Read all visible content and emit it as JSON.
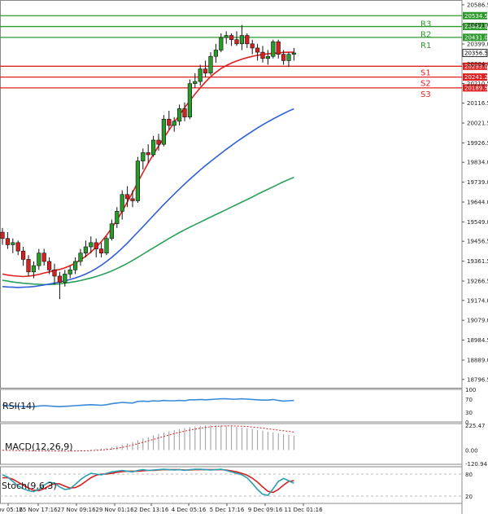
{
  "chart_data": {
    "type": "candlestick",
    "ylim": [
      18780,
      20590
    ],
    "y_ticks": [
      "20586.5",
      "20491.0",
      "20399.0",
      "20304.0",
      "20210.5",
      "20116.5",
      "20021.5",
      "19926.5",
      "19834.0",
      "19739.0",
      "19644.0",
      "19549.0",
      "19456.5",
      "19361.5",
      "19266.5",
      "19174.0",
      "19079.0",
      "18984.5",
      "18889.0",
      "18796.5"
    ],
    "x_ticks": [
      "Nov 05:16",
      "25 Nov 17:16",
      "27 Nov 09:16",
      "29 Nov 01:16",
      "2 Dec 13:16",
      "4 Dec 05:16",
      "5 Dec 17:16",
      "9 Dec 09:16",
      "11 Dec 01:16"
    ],
    "levels": [
      {
        "name": "R3",
        "value": 20534.5,
        "color": "#2e9a2e"
      },
      {
        "name": "R2",
        "value": 20482.8,
        "color": "#2e9a2e"
      },
      {
        "name": "R1",
        "value": 20431.0,
        "color": "#2e9a2e"
      },
      {
        "name": "S1",
        "value": 20293.0,
        "color": "#e02020"
      },
      {
        "name": "S2",
        "value": 20241.2,
        "color": "#e02020"
      },
      {
        "name": "S3",
        "value": 20189.5,
        "color": "#e02020"
      }
    ],
    "current_price": "20356.5",
    "candles": [
      [
        19500,
        19520,
        19440,
        19470
      ],
      [
        19470,
        19500,
        19420,
        19440
      ],
      [
        19440,
        19470,
        19400,
        19450
      ],
      [
        19450,
        19460,
        19390,
        19410
      ],
      [
        19410,
        19430,
        19340,
        19370
      ],
      [
        19370,
        19390,
        19290,
        19310
      ],
      [
        19310,
        19360,
        19280,
        19340
      ],
      [
        19340,
        19420,
        19320,
        19400
      ],
      [
        19400,
        19420,
        19340,
        19360
      ],
      [
        19360,
        19380,
        19300,
        19320
      ],
      [
        19320,
        19350,
        19250,
        19290
      ],
      [
        19290,
        19310,
        19180,
        19260
      ],
      [
        19260,
        19320,
        19240,
        19300
      ],
      [
        19300,
        19340,
        19280,
        19320
      ],
      [
        19320,
        19380,
        19300,
        19360
      ],
      [
        19360,
        19420,
        19340,
        19400
      ],
      [
        19400,
        19460,
        19380,
        19430
      ],
      [
        19430,
        19480,
        19400,
        19450
      ],
      [
        19450,
        19470,
        19380,
        19420
      ],
      [
        19420,
        19450,
        19380,
        19400
      ],
      [
        19400,
        19480,
        19390,
        19470
      ],
      [
        19470,
        19560,
        19460,
        19540
      ],
      [
        19540,
        19620,
        19520,
        19600
      ],
      [
        19600,
        19700,
        19560,
        19680
      ],
      [
        19680,
        19720,
        19620,
        19660
      ],
      [
        19660,
        19700,
        19620,
        19650
      ],
      [
        19650,
        19860,
        19640,
        19840
      ],
      [
        19840,
        19900,
        19800,
        19880
      ],
      [
        19880,
        19920,
        19830,
        19870
      ],
      [
        19870,
        19960,
        19860,
        19940
      ],
      [
        19940,
        19970,
        19890,
        19920
      ],
      [
        19920,
        20060,
        19910,
        20040
      ],
      [
        20040,
        20080,
        19990,
        20010
      ],
      [
        20010,
        20050,
        19980,
        20030
      ],
      [
        20030,
        20110,
        20010,
        20090
      ],
      [
        20090,
        20120,
        20030,
        20050
      ],
      [
        20050,
        20230,
        20040,
        20210
      ],
      [
        20210,
        20260,
        20190,
        20220
      ],
      [
        20220,
        20300,
        20200,
        20280
      ],
      [
        20280,
        20320,
        20240,
        20260
      ],
      [
        20260,
        20360,
        20250,
        20340
      ],
      [
        20340,
        20400,
        20310,
        20370
      ],
      [
        20370,
        20450,
        20360,
        20430
      ],
      [
        20430,
        20460,
        20400,
        20440
      ],
      [
        20440,
        20450,
        20390,
        20420
      ],
      [
        20420,
        20460,
        20390,
        20400
      ],
      [
        20400,
        20490,
        20370,
        20440
      ],
      [
        20440,
        20450,
        20380,
        20400
      ],
      [
        20400,
        20420,
        20350,
        20380
      ],
      [
        20380,
        20400,
        20320,
        20360
      ],
      [
        20360,
        20390,
        20310,
        20330
      ],
      [
        20330,
        20370,
        20300,
        20340
      ],
      [
        20340,
        20420,
        20330,
        20410
      ],
      [
        20410,
        20420,
        20330,
        20350
      ],
      [
        20350,
        20370,
        20300,
        20320
      ],
      [
        20320,
        20360,
        20290,
        20350
      ],
      [
        20350,
        20380,
        20320,
        20356.5
      ]
    ],
    "ma_fast": [
      19300,
      19295,
      19292,
      19290,
      19288,
      19290,
      19293,
      19298,
      19305,
      19310,
      19318,
      19322,
      19330,
      19340,
      19352,
      19368,
      19385,
      19405,
      19428,
      19455,
      19485,
      19520,
      19558,
      19600,
      19645,
      19690,
      19738,
      19785,
      19830,
      19872,
      19912,
      19950,
      19988,
      20025,
      20060,
      20095,
      20128,
      20160,
      20190,
      20218,
      20243,
      20264,
      20282,
      20296,
      20308,
      20318,
      20327,
      20334,
      20340,
      20345,
      20349,
      20352,
      20355,
      20357,
      20359,
      20360,
      20360
    ],
    "ma_mid": [
      19240,
      19238,
      19237,
      19236,
      19237,
      19238,
      19240,
      19244,
      19248,
      19252,
      19257,
      19262,
      19268,
      19274,
      19281,
      19290,
      19300,
      19312,
      19326,
      19342,
      19360,
      19380,
      19401,
      19424,
      19448,
      19474,
      19500,
      19526,
      19553,
      19580,
      19606,
      19632,
      19657,
      19682,
      19706,
      19730,
      19753,
      19775,
      19797,
      19818,
      19838,
      19858,
      19877,
      19896,
      19914,
      19932,
      19949,
      19966,
      19982,
      19998,
      20013,
      20027,
      20041,
      20054,
      20067,
      20079,
      20090
    ],
    "ma_slow": [
      19270,
      19266,
      19262,
      19259,
      19256,
      19254,
      19252,
      19251,
      19250,
      19250,
      19251,
      19253,
      19256,
      19260,
      19264,
      19269,
      19275,
      19281,
      19288,
      19296,
      19305,
      19315,
      19326,
      19338,
      19351,
      19365,
      19380,
      19395,
      19410,
      19425,
      19440,
      19455,
      19470,
      19484,
      19498,
      19511,
      19524,
      19536,
      19548,
      19560,
      19572,
      19584,
      19596,
      19608,
      19620,
      19632,
      19644,
      19656,
      19668,
      19681,
      19693,
      19705,
      19717,
      19729,
      19741,
      19752,
      19762
    ]
  },
  "indicators": {
    "rsi": {
      "label": "RSI(14)",
      "ticks": [
        "100",
        "70",
        "30",
        "0"
      ],
      "values": [
        52,
        50,
        49,
        48,
        47,
        46,
        47,
        49,
        50,
        49,
        48,
        47,
        48,
        49,
        50,
        51,
        52,
        53,
        52,
        51,
        53,
        56,
        58,
        60,
        59,
        58,
        63,
        64,
        63,
        65,
        64,
        66,
        65,
        65,
        66,
        65,
        68,
        68,
        69,
        68,
        69,
        70,
        71,
        71,
        70,
        70,
        71,
        70,
        69,
        68,
        67,
        67,
        69,
        66,
        64,
        65,
        66
      ]
    },
    "macd": {
      "label": "MACD(12,26,9)",
      "ticks": [
        "225.47",
        "0.00",
        "-120.94"
      ],
      "hist": [
        -5,
        -6,
        -7,
        -8,
        -9,
        -10,
        -10,
        -9,
        -9,
        -10,
        -11,
        -11,
        -10,
        -8,
        -6,
        -3,
        0,
        4,
        8,
        12,
        18,
        26,
        36,
        48,
        60,
        72,
        90,
        105,
        118,
        132,
        145,
        158,
        170,
        181,
        190,
        198,
        208,
        215,
        220,
        223,
        225,
        224,
        222,
        219,
        215,
        210,
        204,
        198,
        190,
        182,
        174,
        166,
        160,
        152,
        145,
        138,
        130
      ],
      "signal": [
        -2,
        -3,
        -4,
        -5,
        -6,
        -7,
        -8,
        -8,
        -8,
        -9,
        -9,
        -10,
        -10,
        -10,
        -9,
        -8,
        -7,
        -5,
        -3,
        0,
        4,
        9,
        16,
        24,
        34,
        45,
        57,
        70,
        83,
        96,
        110,
        123,
        136,
        149,
        160,
        171,
        181,
        190,
        198,
        205,
        211,
        215,
        218,
        219,
        219,
        218,
        216,
        213,
        209,
        204,
        199,
        193,
        187,
        181,
        175,
        169,
        163
      ]
    },
    "stoch": {
      "label": "Stoch(9,6,3)",
      "ticks": [
        "80",
        "20"
      ],
      "k": [
        78,
        72,
        60,
        48,
        40,
        35,
        32,
        38,
        50,
        58,
        55,
        45,
        38,
        40,
        52,
        65,
        75,
        82,
        80,
        78,
        82,
        86,
        88,
        90,
        88,
        86,
        90,
        92,
        90,
        91,
        92,
        93,
        92,
        91,
        92,
        90,
        92,
        93,
        93,
        92,
        91,
        92,
        93,
        90,
        86,
        82,
        78,
        70,
        55,
        38,
        25,
        22,
        40,
        60,
        68,
        62,
        55
      ],
      "d": [
        70,
        70,
        66,
        58,
        50,
        42,
        36,
        35,
        40,
        48,
        54,
        53,
        47,
        42,
        43,
        50,
        60,
        70,
        77,
        80,
        80,
        82,
        85,
        87,
        88,
        88,
        88,
        89,
        90,
        90,
        91,
        92,
        92,
        92,
        92,
        91,
        91,
        92,
        92,
        92,
        92,
        92,
        92,
        91,
        89,
        86,
        82,
        77,
        69,
        58,
        45,
        33,
        30,
        38,
        50,
        60,
        62
      ]
    }
  }
}
